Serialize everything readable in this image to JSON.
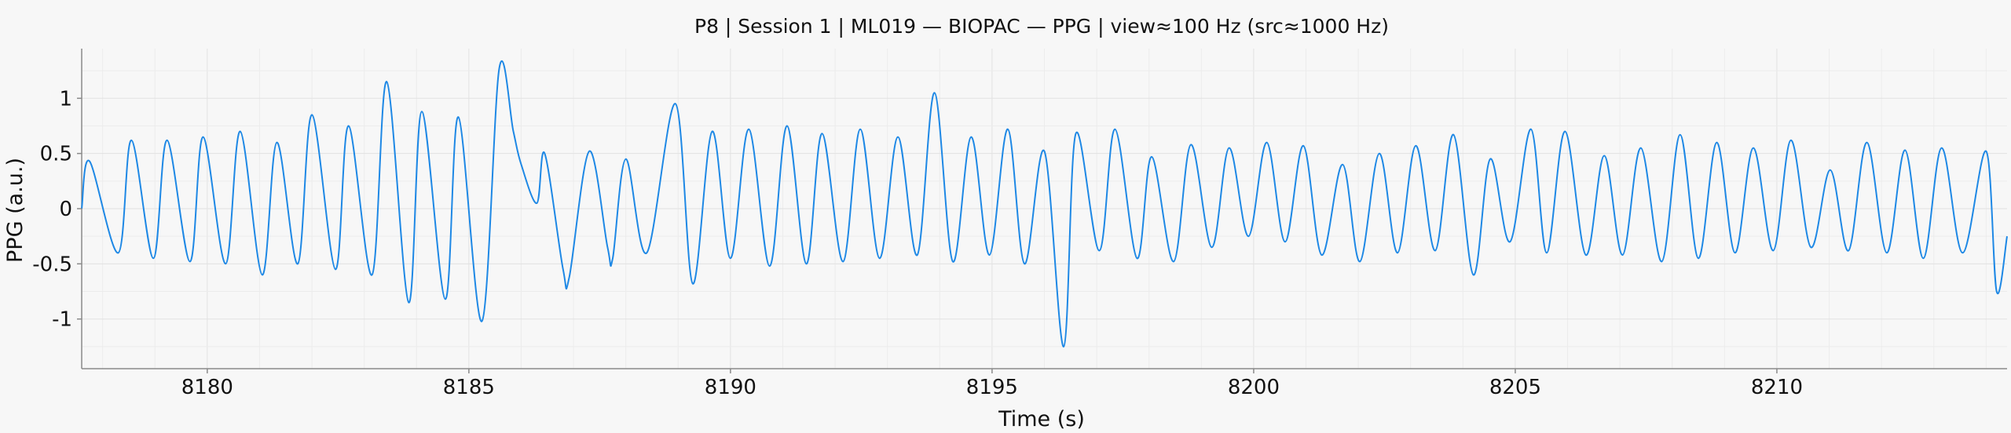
{
  "chart_data": {
    "type": "line",
    "title": "P8 | Session 1 | ML019 — BIOPAC — PPG | view≈100 Hz (src≈1000 Hz)",
    "xlabel": "Time (s)",
    "ylabel": "PPG (a.u.)",
    "xlim": [
      8177.6,
      8214.4
    ],
    "ylim": [
      -1.45,
      1.45
    ],
    "xticks": [
      8180,
      8185,
      8190,
      8195,
      8200,
      8205,
      8210
    ],
    "xtick_labels": [
      "8180",
      "8185",
      "8190",
      "8195",
      "8200",
      "8205",
      "8210"
    ],
    "yticks": [
      1,
      0.5,
      0,
      -0.5,
      -1
    ],
    "ytick_labels": [
      "1",
      "0.5",
      "0",
      "-0.5",
      "-1"
    ],
    "grid": true,
    "legend": "none",
    "series": [
      {
        "color": "#1e88e5",
        "x": [
          8177.6,
          8177.75,
          8178.3,
          8178.55,
          8178.97,
          8179.23,
          8179.67,
          8179.92,
          8180.35,
          8180.63,
          8181.05,
          8181.33,
          8181.73,
          8182.0,
          8182.45,
          8182.7,
          8183.15,
          8183.43,
          8183.85,
          8184.1,
          8184.55,
          8184.8,
          8185.25,
          8185.58,
          8185.85,
          8186.0,
          8186.3,
          8186.45,
          8186.8,
          8186.92,
          8187.3,
          8187.65,
          8187.75,
          8188.0,
          8188.4,
          8188.95,
          8189.28,
          8189.65,
          8190.0,
          8190.35,
          8190.75,
          8191.08,
          8191.45,
          8191.75,
          8192.15,
          8192.48,
          8192.85,
          8193.2,
          8193.57,
          8193.9,
          8194.25,
          8194.6,
          8194.95,
          8195.3,
          8195.62,
          8196.0,
          8196.37,
          8196.6,
          8197.05,
          8197.35,
          8197.77,
          8198.05,
          8198.47,
          8198.8,
          8199.2,
          8199.53,
          8199.9,
          8200.25,
          8200.6,
          8200.95,
          8201.3,
          8201.7,
          8202.03,
          8202.4,
          8202.75,
          8203.1,
          8203.47,
          8203.82,
          8204.2,
          8204.52,
          8204.9,
          8205.3,
          8205.6,
          8205.95,
          8206.35,
          8206.7,
          8207.05,
          8207.4,
          8207.8,
          8208.15,
          8208.5,
          8208.85,
          8209.2,
          8209.55,
          8209.93,
          8210.27,
          8210.65,
          8211.02,
          8211.37,
          8211.72,
          8212.1,
          8212.45,
          8212.8,
          8213.15,
          8213.55,
          8214.0,
          8214.2,
          8214.4
        ],
        "y": [
          0.0,
          0.43,
          -0.4,
          0.62,
          -0.45,
          0.62,
          -0.48,
          0.65,
          -0.5,
          0.7,
          -0.6,
          0.6,
          -0.5,
          0.85,
          -0.55,
          0.75,
          -0.6,
          1.15,
          -0.85,
          0.88,
          -0.82,
          0.83,
          -1.02,
          1.27,
          0.7,
          0.4,
          0.05,
          0.5,
          -0.55,
          -0.62,
          0.52,
          -0.35,
          -0.45,
          0.45,
          -0.4,
          0.95,
          -0.68,
          0.7,
          -0.45,
          0.72,
          -0.52,
          0.75,
          -0.5,
          0.68,
          -0.48,
          0.72,
          -0.45,
          0.65,
          -0.42,
          1.05,
          -0.48,
          0.65,
          -0.42,
          0.72,
          -0.5,
          0.52,
          -1.25,
          0.68,
          -0.38,
          0.72,
          -0.45,
          0.47,
          -0.48,
          0.58,
          -0.35,
          0.55,
          -0.25,
          0.6,
          -0.3,
          0.57,
          -0.42,
          0.4,
          -0.48,
          0.5,
          -0.4,
          0.57,
          -0.38,
          0.67,
          -0.6,
          0.45,
          -0.3,
          0.72,
          -0.4,
          0.7,
          -0.42,
          0.48,
          -0.42,
          0.55,
          -0.48,
          0.67,
          -0.45,
          0.6,
          -0.4,
          0.55,
          -0.38,
          0.62,
          -0.35,
          0.35,
          -0.38,
          0.6,
          -0.4,
          0.53,
          -0.45,
          0.55,
          -0.4,
          0.52,
          -0.75,
          -0.25
        ]
      }
    ]
  }
}
